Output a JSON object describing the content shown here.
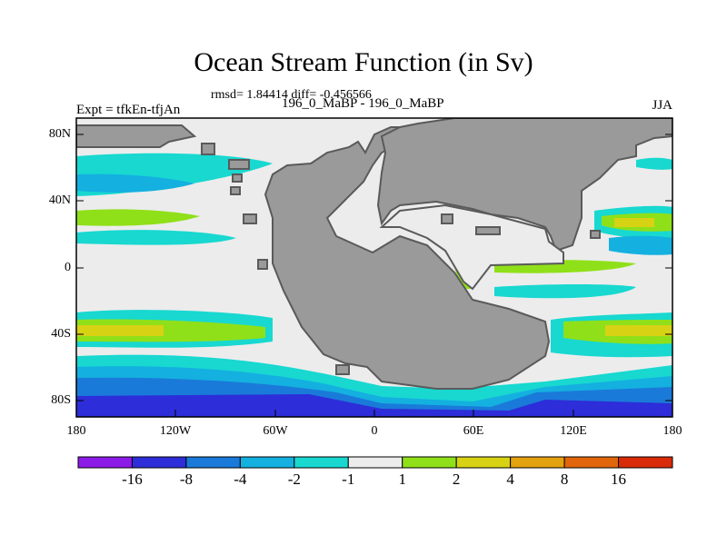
{
  "title": "Ocean Stream Function (in Sv)",
  "stats": "rmsd= 1.84414 diff= -0.456566",
  "left_label": "Expt = tfkEn-tfjAn",
  "center_label": "196_0_MaBP - 196_0_MaBP",
  "right_label": "JJA",
  "lat_ticks": [
    "80N",
    "40N",
    "0",
    "40S",
    "80S"
  ],
  "lon_ticks": [
    "180",
    "120W",
    "60W",
    "0",
    "60E",
    "120E",
    "180"
  ],
  "colorbar": {
    "colors": [
      "#8d1be8",
      "#2d2dd9",
      "#1a7ad9",
      "#14b0e0",
      "#18d8d0",
      "#ececec",
      "#8fe019",
      "#d8d214",
      "#e5a20f",
      "#e2660c",
      "#d92a0a"
    ],
    "labels": [
      "-16",
      "-8",
      "-4",
      "-2",
      "-1",
      "1",
      "2",
      "4",
      "8",
      "16"
    ]
  },
  "colors": {
    "land": "#9a9a9a",
    "coast": "#5a5a5a",
    "ocean_neutral": "#ececec"
  }
}
